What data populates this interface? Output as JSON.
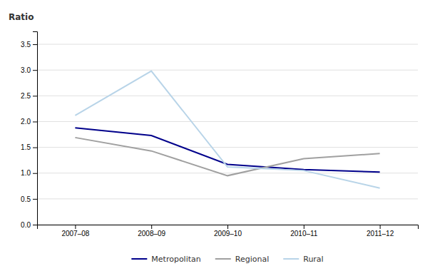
{
  "chart_data": {
    "type": "line",
    "y_label": "Ratio",
    "categories": [
      "2007–08",
      "2008–09",
      "2009–10",
      "2010–11",
      "2011–12"
    ],
    "series": [
      {
        "name": "Metropolitan",
        "color": "#00008B",
        "values": [
          1.88,
          1.73,
          1.17,
          1.07,
          1.02
        ]
      },
      {
        "name": "Regional",
        "color": "#A0A0A0",
        "values": [
          1.69,
          1.43,
          0.95,
          1.28,
          1.38
        ]
      },
      {
        "name": "Rural",
        "color": "#B8D4E8",
        "values": [
          2.12,
          2.98,
          1.12,
          1.05,
          0.71
        ]
      }
    ],
    "ylim": [
      0.0,
      3.75
    ],
    "yticks": [
      {
        "value": 0.0,
        "label": "0.0"
      },
      0.5,
      {
        "value": 1.0,
        "label": "1.0"
      },
      1.5,
      {
        "value": 2.0,
        "label": "2.0"
      },
      2.5,
      {
        "value": 3.0,
        "label": "3.0"
      },
      3.5
    ],
    "grid": true,
    "legend": "bottom"
  }
}
